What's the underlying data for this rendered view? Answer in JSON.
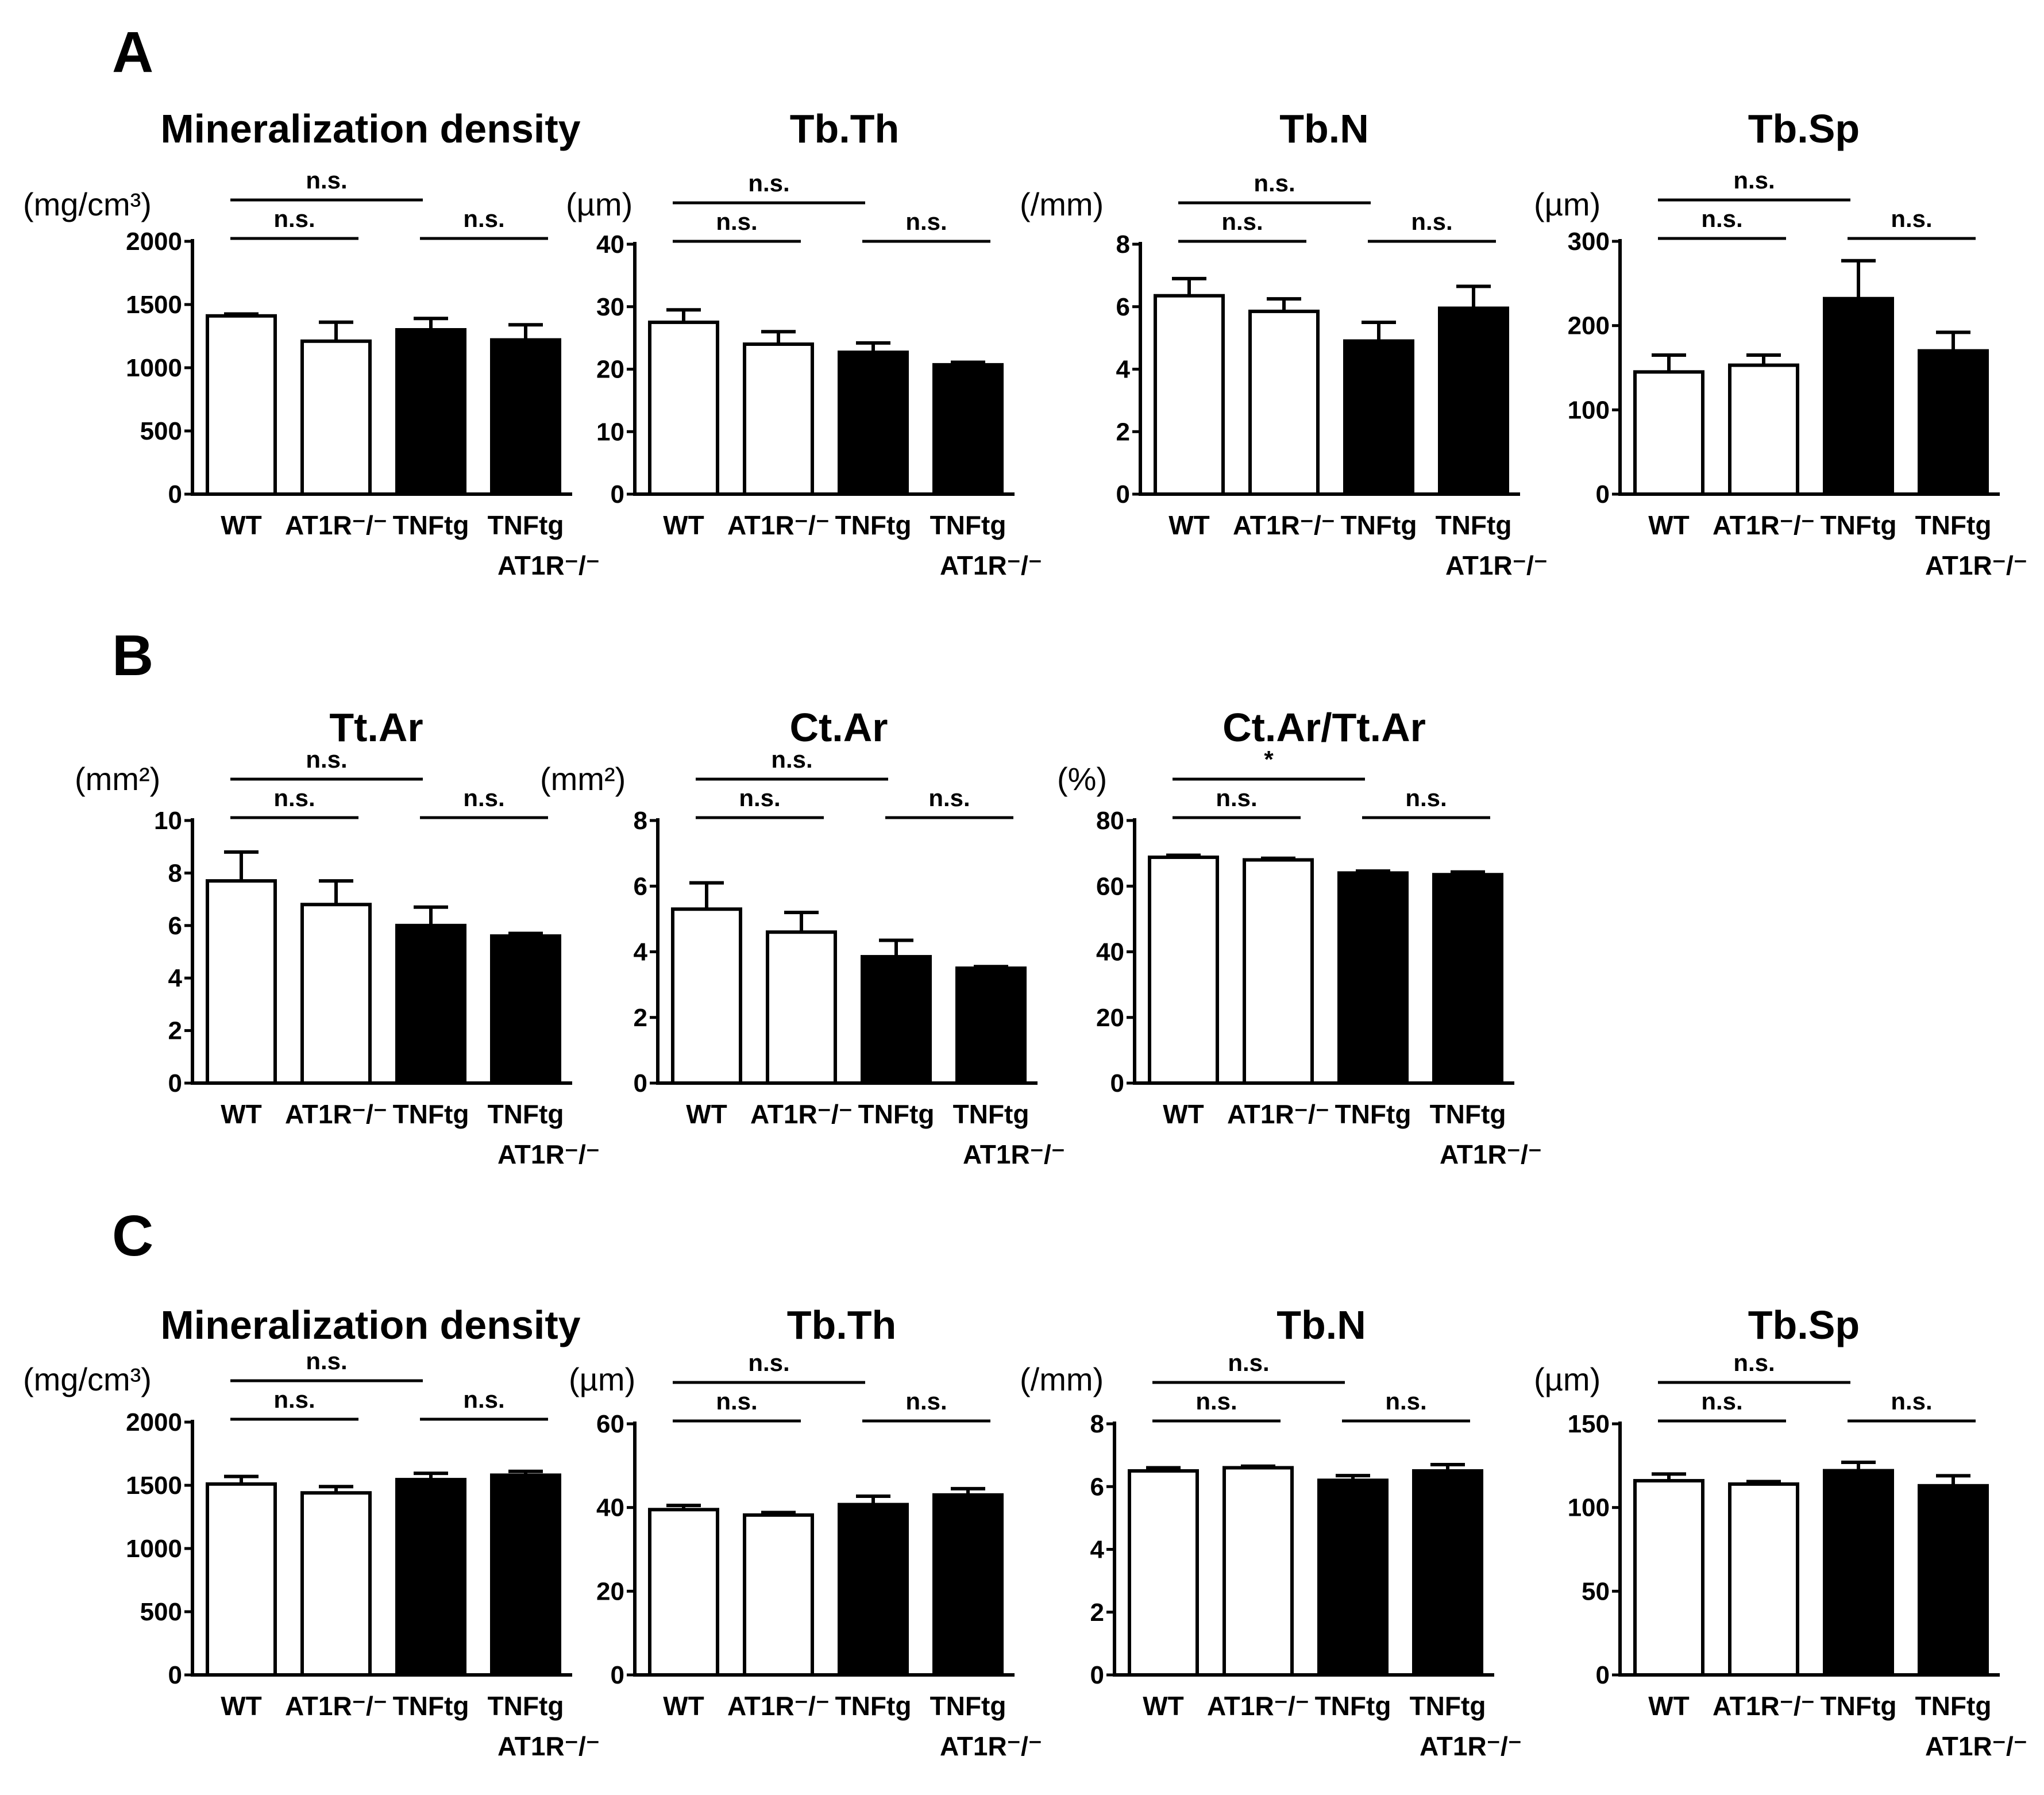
{
  "panels": [
    {
      "label": "A",
      "charts": [
        0,
        1,
        2,
        3
      ]
    },
    {
      "label": "B",
      "charts": [
        4,
        5,
        6
      ]
    },
    {
      "label": "C",
      "charts": [
        7,
        8,
        9,
        10
      ]
    }
  ],
  "bar_fills": {
    "open": "#ffffff",
    "filled": "#000000",
    "stroke": "#000000"
  },
  "chart_data": [
    {
      "type": "bar",
      "panel": "A",
      "title": "Mineralization density",
      "ylabel": "(mg/cm³)",
      "ylim": [
        0,
        2000
      ],
      "yticks": [
        "0",
        "500",
        "1000",
        "1500",
        "2000"
      ],
      "categories": [
        "WT",
        "AT1R-/-",
        "TNFtg",
        "TNFtg AT1R-/-"
      ],
      "category_lines": [
        [
          "WT"
        ],
        [
          "AT1R⁻/⁻"
        ],
        [
          "TNFtg"
        ],
        [
          "TNFtg",
          "AT1R⁻/⁻"
        ]
      ],
      "values": [
        1410,
        1210,
        1300,
        1220
      ],
      "errors": [
        15,
        150,
        90,
        120
      ],
      "fills": [
        "open",
        "open",
        "filled",
        "filled"
      ],
      "significance": [
        {
          "from": 0,
          "to": 1,
          "label": "n.s."
        },
        {
          "from": 2,
          "to": 3,
          "label": "n.s."
        },
        {
          "from": 0,
          "to": 2,
          "label": "n.s."
        }
      ]
    },
    {
      "type": "bar",
      "panel": "A",
      "title": "Tb.Th",
      "ylabel": "(µm)",
      "ylim": [
        0,
        40
      ],
      "yticks": [
        "0",
        "10",
        "20",
        "30",
        "40"
      ],
      "categories": [
        "WT",
        "AT1R-/-",
        "TNFtg",
        "TNFtg AT1R-/-"
      ],
      "category_lines": [
        [
          "WT"
        ],
        [
          "AT1R⁻/⁻"
        ],
        [
          "TNFtg"
        ],
        [
          "TNFtg",
          "AT1R⁻/⁻"
        ]
      ],
      "values": [
        27.5,
        24,
        22.7,
        20.7
      ],
      "errors": [
        2,
        2,
        1.5,
        0.4
      ],
      "fills": [
        "open",
        "open",
        "filled",
        "filled"
      ],
      "significance": [
        {
          "from": 0,
          "to": 1,
          "label": "n.s."
        },
        {
          "from": 2,
          "to": 3,
          "label": "n.s."
        },
        {
          "from": 0,
          "to": 2,
          "label": "n.s."
        }
      ]
    },
    {
      "type": "bar",
      "panel": "A",
      "title": "Tb.N",
      "ylabel": "(/mm)",
      "ylim": [
        0,
        8
      ],
      "yticks": [
        "0",
        "2",
        "4",
        "6",
        "8"
      ],
      "categories": [
        "WT",
        "AT1R-/-",
        "TNFtg",
        "TNFtg AT1R-/-"
      ],
      "category_lines": [
        [
          "WT"
        ],
        [
          "AT1R⁻/⁻"
        ],
        [
          "TNFtg"
        ],
        [
          "TNFtg",
          "AT1R⁻/⁻"
        ]
      ],
      "values": [
        6.35,
        5.85,
        4.9,
        5.95
      ],
      "errors": [
        0.55,
        0.4,
        0.6,
        0.7
      ],
      "fills": [
        "open",
        "open",
        "filled",
        "filled"
      ],
      "significance": [
        {
          "from": 0,
          "to": 1,
          "label": "n.s."
        },
        {
          "from": 2,
          "to": 3,
          "label": "n.s."
        },
        {
          "from": 0,
          "to": 2,
          "label": "n.s."
        }
      ]
    },
    {
      "type": "bar",
      "panel": "A",
      "title": "Tb.Sp",
      "ylabel": "(µm)",
      "ylim": [
        0,
        300
      ],
      "yticks": [
        "0",
        "100",
        "200",
        "300"
      ],
      "categories": [
        "WT",
        "AT1R-/-",
        "TNFtg",
        "TNFtg AT1R-/-"
      ],
      "category_lines": [
        [
          "WT"
        ],
        [
          "AT1R⁻/⁻"
        ],
        [
          "TNFtg"
        ],
        [
          "TNFtg",
          "AT1R⁻/⁻"
        ]
      ],
      "values": [
        145,
        153,
        232,
        170
      ],
      "errors": [
        20,
        12,
        45,
        22
      ],
      "fills": [
        "open",
        "open",
        "filled",
        "filled"
      ],
      "significance": [
        {
          "from": 0,
          "to": 1,
          "label": "n.s."
        },
        {
          "from": 2,
          "to": 3,
          "label": "n.s."
        },
        {
          "from": 0,
          "to": 2,
          "label": "n.s."
        }
      ]
    },
    {
      "type": "bar",
      "panel": "B",
      "title": "Tt.Ar",
      "ylabel": "(mm²)",
      "ylim": [
        0,
        10
      ],
      "yticks": [
        "0",
        "2",
        "4",
        "6",
        "8",
        "10"
      ],
      "categories": [
        "WT",
        "AT1R-/-",
        "TNFtg",
        "TNFtg AT1R-/-"
      ],
      "category_lines": [
        [
          "WT"
        ],
        [
          "AT1R⁻/⁻"
        ],
        [
          "TNFtg"
        ],
        [
          "TNFtg",
          "AT1R⁻/⁻"
        ]
      ],
      "values": [
        7.7,
        6.8,
        6.0,
        5.6
      ],
      "errors": [
        1.1,
        0.9,
        0.7,
        0.1
      ],
      "fills": [
        "open",
        "open",
        "filled",
        "filled"
      ],
      "significance": [
        {
          "from": 0,
          "to": 1,
          "label": "n.s."
        },
        {
          "from": 2,
          "to": 3,
          "label": "n.s."
        },
        {
          "from": 0,
          "to": 2,
          "label": "n.s."
        }
      ]
    },
    {
      "type": "bar",
      "panel": "B",
      "title": "Ct.Ar",
      "ylabel": "(mm²)",
      "ylim": [
        0,
        8
      ],
      "yticks": [
        "0",
        "2",
        "4",
        "6",
        "8"
      ],
      "categories": [
        "WT",
        "AT1R-/-",
        "TNFtg",
        "TNFtg AT1R-/-"
      ],
      "category_lines": [
        [
          "WT"
        ],
        [
          "AT1R⁻/⁻"
        ],
        [
          "TNFtg"
        ],
        [
          "TNFtg",
          "AT1R⁻/⁻"
        ]
      ],
      "values": [
        5.3,
        4.6,
        3.85,
        3.5
      ],
      "errors": [
        0.8,
        0.6,
        0.5,
        0.05
      ],
      "fills": [
        "open",
        "open",
        "filled",
        "filled"
      ],
      "significance": [
        {
          "from": 0,
          "to": 1,
          "label": "n.s."
        },
        {
          "from": 2,
          "to": 3,
          "label": "n.s."
        },
        {
          "from": 0,
          "to": 2,
          "label": "n.s."
        }
      ]
    },
    {
      "type": "bar",
      "panel": "B",
      "title": "Ct.Ar/Tt.Ar",
      "ylabel": "(%)",
      "ylim": [
        0,
        80
      ],
      "yticks": [
        "0",
        "20",
        "40",
        "60",
        "80"
      ],
      "categories": [
        "WT",
        "AT1R-/-",
        "TNFtg",
        "TNFtg AT1R-/-"
      ],
      "category_lines": [
        [
          "WT"
        ],
        [
          "AT1R⁻/⁻"
        ],
        [
          "TNFtg"
        ],
        [
          "TNFtg",
          "AT1R⁻/⁻"
        ]
      ],
      "values": [
        68.8,
        68.0,
        64.0,
        63.5
      ],
      "errors": [
        0.6,
        0.5,
        0.6,
        0.8
      ],
      "fills": [
        "open",
        "open",
        "filled",
        "filled"
      ],
      "significance": [
        {
          "from": 0,
          "to": 1,
          "label": "n.s."
        },
        {
          "from": 2,
          "to": 3,
          "label": "n.s."
        },
        {
          "from": 0,
          "to": 2,
          "label": "*"
        }
      ]
    },
    {
      "type": "bar",
      "panel": "C",
      "title": "Mineralization density",
      "ylabel": "(mg/cm³)",
      "ylim": [
        0,
        2000
      ],
      "yticks": [
        "0",
        "500",
        "1000",
        "1500",
        "2000"
      ],
      "categories": [
        "WT",
        "AT1R-/-",
        "TNFtg",
        "TNFtg AT1R-/-"
      ],
      "category_lines": [
        [
          "WT"
        ],
        [
          "AT1R⁻/⁻"
        ],
        [
          "TNFtg"
        ],
        [
          "TNFtg",
          "AT1R⁻/⁻"
        ]
      ],
      "values": [
        1510,
        1440,
        1545,
        1580
      ],
      "errors": [
        60,
        50,
        50,
        30
      ],
      "fills": [
        "open",
        "open",
        "filled",
        "filled"
      ],
      "significance": [
        {
          "from": 0,
          "to": 1,
          "label": "n.s."
        },
        {
          "from": 2,
          "to": 3,
          "label": "n.s."
        },
        {
          "from": 0,
          "to": 2,
          "label": "n.s."
        }
      ]
    },
    {
      "type": "bar",
      "panel": "C",
      "title": "Tb.Th",
      "ylabel": "(µm)",
      "ylim": [
        0,
        60
      ],
      "yticks": [
        "0",
        "20",
        "40",
        "60"
      ],
      "categories": [
        "WT",
        "AT1R-/-",
        "TNFtg",
        "TNFtg AT1R-/-"
      ],
      "category_lines": [
        [
          "WT"
        ],
        [
          "AT1R⁻/⁻"
        ],
        [
          "TNFtg"
        ],
        [
          "TNFtg",
          "AT1R⁻/⁻"
        ]
      ],
      "values": [
        39.5,
        38.2,
        40.7,
        43.0
      ],
      "errors": [
        1.0,
        0.6,
        2.0,
        1.5
      ],
      "fills": [
        "open",
        "open",
        "filled",
        "filled"
      ],
      "significance": [
        {
          "from": 0,
          "to": 1,
          "label": "n.s."
        },
        {
          "from": 2,
          "to": 3,
          "label": "n.s."
        },
        {
          "from": 0,
          "to": 2,
          "label": "n.s."
        }
      ]
    },
    {
      "type": "bar",
      "panel": "C",
      "title": "Tb.N",
      "ylabel": "(/mm)",
      "ylim": [
        0,
        8
      ],
      "yticks": [
        "0",
        "2",
        "4",
        "6",
        "8"
      ],
      "categories": [
        "WT",
        "AT1R-/-",
        "TNFtg",
        "TNFtg AT1R-/-"
      ],
      "category_lines": [
        [
          "WT"
        ],
        [
          "AT1R⁻/⁻"
        ],
        [
          "TNFtg"
        ],
        [
          "TNFtg",
          "AT1R⁻/⁻"
        ]
      ],
      "values": [
        6.5,
        6.6,
        6.2,
        6.5
      ],
      "errors": [
        0.1,
        0.05,
        0.15,
        0.2
      ],
      "fills": [
        "open",
        "open",
        "filled",
        "filled"
      ],
      "significance": [
        {
          "from": 0,
          "to": 1,
          "label": "n.s."
        },
        {
          "from": 2,
          "to": 3,
          "label": "n.s."
        },
        {
          "from": 0,
          "to": 2,
          "label": "n.s."
        }
      ]
    },
    {
      "type": "bar",
      "panel": "C",
      "title": "Tb.Sp",
      "ylabel": "(µm)",
      "ylim": [
        0,
        150
      ],
      "yticks": [
        "0",
        "50",
        "100",
        "150"
      ],
      "categories": [
        "WT",
        "AT1R-/-",
        "TNFtg",
        "TNFtg AT1R-/-"
      ],
      "category_lines": [
        [
          "WT"
        ],
        [
          "AT1R⁻/⁻"
        ],
        [
          "TNFtg"
        ],
        [
          "TNFtg",
          "AT1R⁻/⁻"
        ]
      ],
      "values": [
        116,
        114,
        122,
        113
      ],
      "errors": [
        4,
        1.5,
        5,
        6
      ],
      "fills": [
        "open",
        "open",
        "filled",
        "filled"
      ],
      "significance": [
        {
          "from": 0,
          "to": 1,
          "label": "n.s."
        },
        {
          "from": 2,
          "to": 3,
          "label": "n.s."
        },
        {
          "from": 0,
          "to": 2,
          "label": "n.s."
        }
      ]
    }
  ]
}
